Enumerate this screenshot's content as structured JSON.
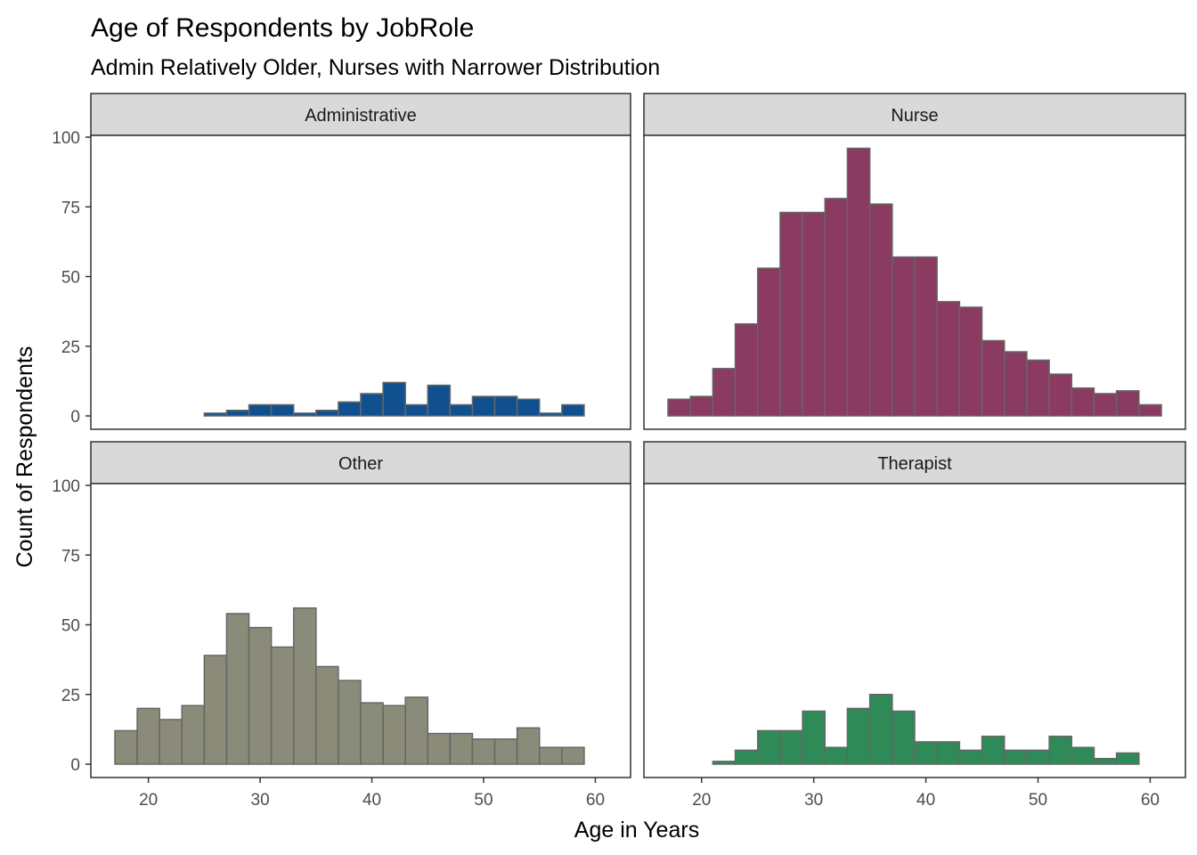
{
  "chart_data": {
    "type": "bar",
    "subtype": "faceted-histogram",
    "title": "Age of Respondents by JobRole",
    "subtitle": "Admin Relatively Older, Nurses with Narrower Distribution",
    "xlabel": "Age in Years",
    "ylabel": "Count of Respondents",
    "xlim": [
      17,
      61
    ],
    "ylim": [
      0,
      100
    ],
    "x_ticks": [
      20,
      30,
      40,
      50,
      60
    ],
    "y_ticks": [
      0,
      25,
      50,
      75,
      100
    ],
    "bin_width": 2,
    "bin_edges": [
      17,
      19,
      21,
      23,
      25,
      27,
      29,
      31,
      33,
      35,
      37,
      39,
      41,
      43,
      45,
      47,
      49,
      51,
      53,
      55,
      57,
      59,
      61
    ],
    "grid": false,
    "facet_layout": "2x2",
    "panels": [
      {
        "name": "Administrative",
        "color": "#11508F",
        "values": [
          0,
          0,
          0,
          0,
          1,
          2,
          4,
          4,
          1,
          2,
          5,
          8,
          12,
          4,
          11,
          4,
          7,
          7,
          6,
          1,
          4,
          0
        ]
      },
      {
        "name": "Nurse",
        "color": "#8B3A62",
        "values": [
          6,
          7,
          17,
          33,
          53,
          73,
          73,
          78,
          96,
          76,
          57,
          57,
          41,
          39,
          27,
          23,
          20,
          15,
          10,
          8,
          9,
          4
        ]
      },
      {
        "name": "Other",
        "color": "#8B8B7A",
        "values": [
          12,
          20,
          16,
          21,
          39,
          54,
          49,
          42,
          56,
          35,
          30,
          22,
          21,
          24,
          11,
          11,
          9,
          9,
          13,
          6,
          6,
          0
        ]
      },
      {
        "name": "Therapist",
        "color": "#2E8B57",
        "values": [
          0,
          0,
          1,
          5,
          12,
          12,
          19,
          6,
          20,
          25,
          19,
          8,
          8,
          5,
          10,
          5,
          5,
          10,
          6,
          2,
          4,
          0
        ]
      }
    ]
  }
}
